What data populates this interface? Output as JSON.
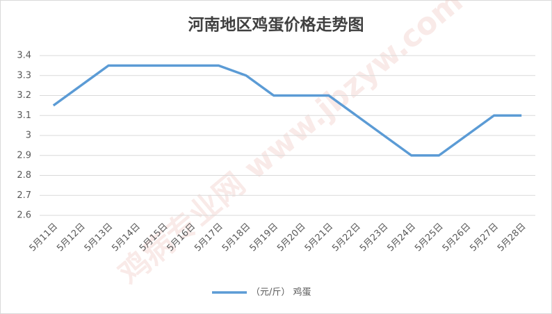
{
  "chart_data": {
    "type": "line",
    "title": "河南地区鸡蛋价格走势图",
    "watermark": "鸡病专业网 www.jbzyw.com",
    "categories": [
      "5月11日",
      "5月12日",
      "5月13日",
      "5月14日",
      "5月15日",
      "5月16日",
      "5月17日",
      "5月18日",
      "5月19日",
      "5月20日",
      "5月21日",
      "5月22日",
      "5月23日",
      "5月24日",
      "5月25日",
      "5月26日",
      "5月27日",
      "5月28日"
    ],
    "series": [
      {
        "name": "（元/斤） 鸡蛋",
        "color": "#5b9bd5",
        "values": [
          3.15,
          3.25,
          3.35,
          3.35,
          3.35,
          3.35,
          3.35,
          3.3,
          3.2,
          3.2,
          3.2,
          3.1,
          3.0,
          2.9,
          2.9,
          3.0,
          3.1,
          3.1
        ]
      }
    ],
    "ylim": [
      2.6,
      3.4
    ],
    "yticks": [
      2.6,
      2.7,
      2.8,
      2.9,
      3,
      3.1,
      3.2,
      3.3,
      3.4
    ],
    "grid": true,
    "legend": "bottom"
  }
}
